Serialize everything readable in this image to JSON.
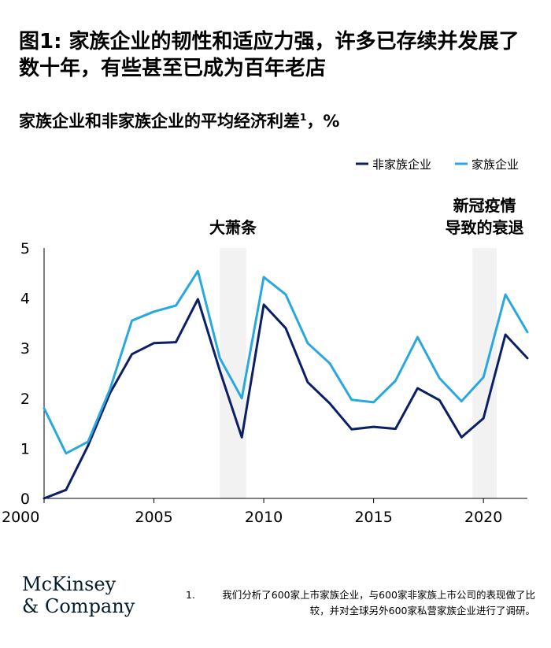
{
  "title": "图1: 家族企业的韧性和适应力强，许多已存续并发展了数十年，有些甚至已成为百年老店",
  "subtitle": "家族企业和非家族企业的平均经济利差",
  "subtitle_sup": "1",
  "subtitle_unit": "，%",
  "chart_data": {
    "type": "line",
    "x": [
      2000,
      2001,
      2002,
      2003,
      2004,
      2005,
      2006,
      2007,
      2008,
      2009,
      2010,
      2011,
      2012,
      2013,
      2014,
      2015,
      2016,
      2017,
      2018,
      2019,
      2020,
      2021,
      2022
    ],
    "series": [
      {
        "name": "非家族企业",
        "color": "#0b1f66",
        "values": [
          0.0,
          0.17,
          1.05,
          2.1,
          2.88,
          3.1,
          3.12,
          3.98,
          2.55,
          1.22,
          3.87,
          3.4,
          2.32,
          1.9,
          1.38,
          1.43,
          1.39,
          2.2,
          1.96,
          1.22,
          1.6,
          3.27,
          2.8
        ]
      },
      {
        "name": "家族企业",
        "color": "#29a8e0",
        "values": [
          1.8,
          0.9,
          1.13,
          2.18,
          3.55,
          3.73,
          3.85,
          4.54,
          2.8,
          2.0,
          4.42,
          4.07,
          3.1,
          2.7,
          1.97,
          1.92,
          2.35,
          3.22,
          2.4,
          1.94,
          2.42,
          4.07,
          3.32
        ]
      }
    ],
    "xlim": [
      2000,
      2022
    ],
    "ylim": [
      0,
      5
    ],
    "xticks": [
      2000,
      2005,
      2010,
      2015,
      2020
    ],
    "yticks": [
      0,
      1,
      2,
      3,
      4,
      5
    ],
    "shaded_periods": [
      {
        "label": "大萧条",
        "start": 2008,
        "end": 2009.2
      },
      {
        "label": "新冠疫情导致的衰退",
        "label_lines": [
          "新冠疫情",
          "导致的衰退"
        ],
        "start": 2019.5,
        "end": 2020.6
      }
    ],
    "legend_position": "top-right",
    "grid": false,
    "shade_color": "#f2f2f2"
  },
  "logo_line1": "McKinsey",
  "logo_line2": "& Company",
  "footnote_num": "1.",
  "footnote_text": "我们分析了600家上市家族企业，与600家非家族上市公司的表现做了比较，并对全球另外600家私营家族企业进行了调研。"
}
